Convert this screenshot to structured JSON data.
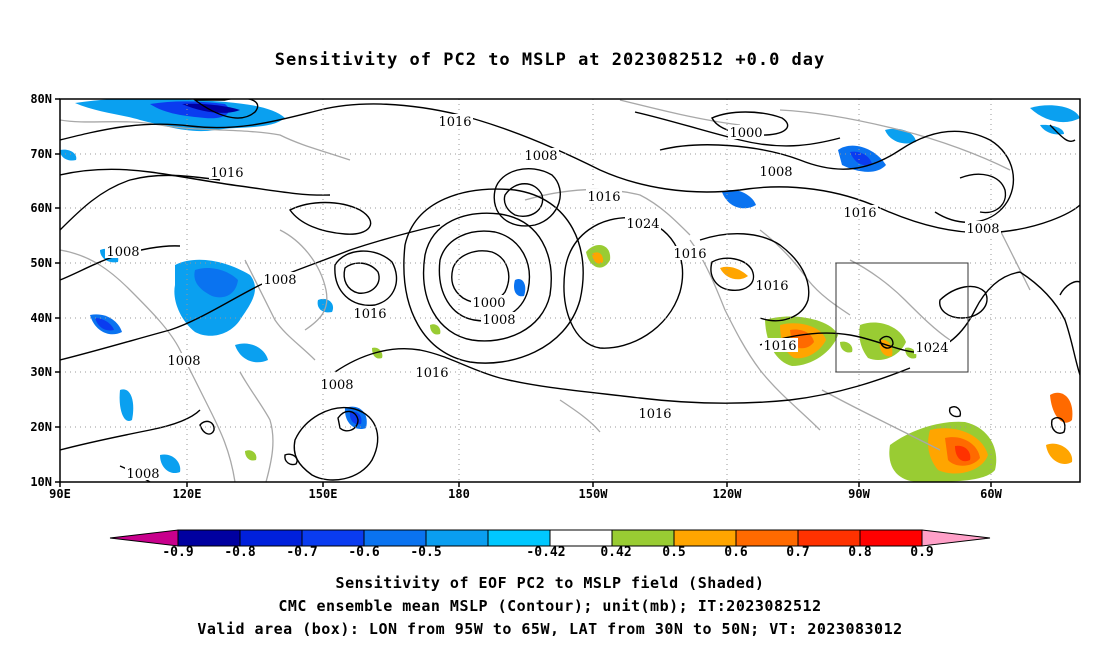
{
  "title": "Sensitivity of PC2 to MSLP at 2023082512 +0.0 day",
  "lat_labels": [
    "80N",
    "70N",
    "60N",
    "50N",
    "40N",
    "30N",
    "20N",
    "10N"
  ],
  "lon_labels": [
    "90E",
    "120E",
    "150E",
    "180",
    "150W",
    "120W",
    "90W",
    "60W"
  ],
  "contour_labels": [
    "1016",
    "1016",
    "1008",
    "1000",
    "1008",
    "1016",
    "1016",
    "1024",
    "1008",
    "1008",
    "1016",
    "1008",
    "1008",
    "1000",
    "1008",
    "1016",
    "1016",
    "1016",
    "1008",
    "1016",
    "1024",
    "1016",
    "1016",
    "1008"
  ],
  "colorbar": {
    "labels": [
      "-0.9",
      "-0.8",
      "-0.7",
      "-0.6",
      "-0.5",
      "-0.42",
      "0.42",
      "0.5",
      "0.6",
      "0.7",
      "0.8",
      "0.9"
    ],
    "colors": [
      "#c8008c",
      "#0000a0",
      "#0020dc",
      "#0a3cf0",
      "#0a73f0",
      "#0a9ef0",
      "#00c8ff",
      "#ffffff",
      "#99cc33",
      "#ffa500",
      "#ff6a00",
      "#ff3200",
      "#ff0000",
      "#ffa0c8"
    ]
  },
  "captions": {
    "line1": "Sensitivity of EOF PC2 to MSLP field (Shaded)",
    "line2": "CMC ensemble mean MSLP (Contour); unit(mb); IT:2023082512",
    "line3": "Valid area (box): LON from 95W to 65W, LAT from 30N to 50N; VT: 2023083012"
  }
}
